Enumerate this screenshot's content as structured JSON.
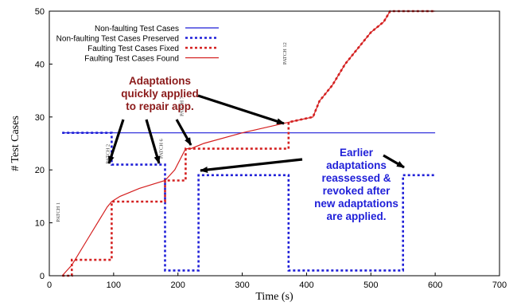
{
  "chart_data": {
    "type": "line",
    "xlabel": "Time (s)",
    "ylabel": "# Test Cases",
    "xlim": [
      0,
      700
    ],
    "ylim": [
      0,
      50
    ],
    "xticks": [
      0,
      100,
      200,
      300,
      400,
      500,
      600,
      700
    ],
    "yticks": [
      0,
      10,
      20,
      30,
      40,
      50
    ],
    "grid": false,
    "legend_position": "top-left",
    "series": [
      {
        "name": "Non-faulting Test Cases",
        "color": "#1f1fd8",
        "style": "solid",
        "x": [
          20,
          600
        ],
        "y": [
          27,
          27
        ]
      },
      {
        "name": "Non-faulting Test Cases Preserved",
        "color": "#1f1fd8",
        "style": "dotted",
        "x": [
          20,
          97,
          97,
          180,
          180,
          232,
          232,
          372,
          372,
          550,
          550,
          600
        ],
        "y": [
          27,
          27,
          21,
          21,
          1,
          1,
          19,
          19,
          1,
          1,
          19,
          19
        ]
      },
      {
        "name": "Faulting Test Cases Fixed",
        "color": "#d42020",
        "style": "dotted",
        "x": [
          20,
          35,
          35,
          97,
          97,
          180,
          180,
          212,
          212,
          372,
          372,
          410,
          420,
          440,
          460,
          480,
          500,
          520,
          530,
          600
        ],
        "y": [
          0,
          0,
          3,
          3,
          14,
          14,
          18,
          18,
          24,
          24,
          29,
          30,
          33,
          36,
          40,
          43,
          46,
          48,
          50,
          50
        ]
      },
      {
        "name": "Faulting Test Cases Found",
        "color": "#d42020",
        "style": "solid",
        "x": [
          20,
          35,
          60,
          90,
          97,
          110,
          140,
          180,
          195,
          212,
          220,
          240,
          300,
          372,
          410,
          420,
          440,
          460,
          480,
          500,
          520,
          530,
          600
        ],
        "y": [
          0,
          2,
          7,
          13,
          14,
          15,
          16.5,
          18,
          20,
          24,
          24,
          25,
          27,
          29,
          30,
          33,
          36,
          40,
          43,
          46,
          48,
          50,
          50
        ]
      }
    ],
    "patches": [
      {
        "label": "PATCH 1",
        "x": 20
      },
      {
        "label": "PATCH 2",
        "x": 97
      },
      {
        "label": "PATCH 6",
        "x": 180
      },
      {
        "label": "PATCH 7",
        "x": 212
      },
      {
        "label": "PATCH 12",
        "x": 372
      }
    ],
    "annotations": [
      {
        "id": "adapt",
        "lines": [
          "Adaptations",
          "quickly applied",
          "to repair app."
        ],
        "color": "#8b1a1a"
      },
      {
        "id": "earlier",
        "lines": [
          "Earlier",
          "adaptations",
          "reassessed &",
          "revoked after",
          "new adaptations",
          "are applied."
        ],
        "color": "#1f1fd8"
      }
    ]
  }
}
